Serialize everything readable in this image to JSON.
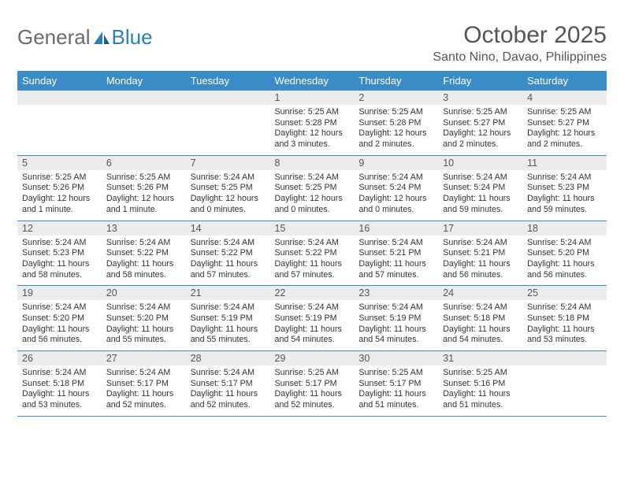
{
  "logo": {
    "word1": "General",
    "word2": "Blue"
  },
  "header": {
    "title": "October 2025",
    "location": "Santo Nino, Davao, Philippines"
  },
  "weekdays": [
    "Sunday",
    "Monday",
    "Tuesday",
    "Wednesday",
    "Thursday",
    "Friday",
    "Saturday"
  ],
  "colors": {
    "header_bg": "#3b8bc6",
    "daynum_bg": "#ececec",
    "row_border": "#3b8bc6"
  },
  "weeks": [
    [
      null,
      null,
      null,
      {
        "num": "1",
        "sunrise": "5:25 AM",
        "sunset": "5:28 PM",
        "daylight": "12 hours and 3 minutes."
      },
      {
        "num": "2",
        "sunrise": "5:25 AM",
        "sunset": "5:28 PM",
        "daylight": "12 hours and 2 minutes."
      },
      {
        "num": "3",
        "sunrise": "5:25 AM",
        "sunset": "5:27 PM",
        "daylight": "12 hours and 2 minutes."
      },
      {
        "num": "4",
        "sunrise": "5:25 AM",
        "sunset": "5:27 PM",
        "daylight": "12 hours and 2 minutes."
      }
    ],
    [
      {
        "num": "5",
        "sunrise": "5:25 AM",
        "sunset": "5:26 PM",
        "daylight": "12 hours and 1 minute."
      },
      {
        "num": "6",
        "sunrise": "5:25 AM",
        "sunset": "5:26 PM",
        "daylight": "12 hours and 1 minute."
      },
      {
        "num": "7",
        "sunrise": "5:24 AM",
        "sunset": "5:25 PM",
        "daylight": "12 hours and 0 minutes."
      },
      {
        "num": "8",
        "sunrise": "5:24 AM",
        "sunset": "5:25 PM",
        "daylight": "12 hours and 0 minutes."
      },
      {
        "num": "9",
        "sunrise": "5:24 AM",
        "sunset": "5:24 PM",
        "daylight": "12 hours and 0 minutes."
      },
      {
        "num": "10",
        "sunrise": "5:24 AM",
        "sunset": "5:24 PM",
        "daylight": "11 hours and 59 minutes."
      },
      {
        "num": "11",
        "sunrise": "5:24 AM",
        "sunset": "5:23 PM",
        "daylight": "11 hours and 59 minutes."
      }
    ],
    [
      {
        "num": "12",
        "sunrise": "5:24 AM",
        "sunset": "5:23 PM",
        "daylight": "11 hours and 58 minutes."
      },
      {
        "num": "13",
        "sunrise": "5:24 AM",
        "sunset": "5:22 PM",
        "daylight": "11 hours and 58 minutes."
      },
      {
        "num": "14",
        "sunrise": "5:24 AM",
        "sunset": "5:22 PM",
        "daylight": "11 hours and 57 minutes."
      },
      {
        "num": "15",
        "sunrise": "5:24 AM",
        "sunset": "5:22 PM",
        "daylight": "11 hours and 57 minutes."
      },
      {
        "num": "16",
        "sunrise": "5:24 AM",
        "sunset": "5:21 PM",
        "daylight": "11 hours and 57 minutes."
      },
      {
        "num": "17",
        "sunrise": "5:24 AM",
        "sunset": "5:21 PM",
        "daylight": "11 hours and 56 minutes."
      },
      {
        "num": "18",
        "sunrise": "5:24 AM",
        "sunset": "5:20 PM",
        "daylight": "11 hours and 56 minutes."
      }
    ],
    [
      {
        "num": "19",
        "sunrise": "5:24 AM",
        "sunset": "5:20 PM",
        "daylight": "11 hours and 56 minutes."
      },
      {
        "num": "20",
        "sunrise": "5:24 AM",
        "sunset": "5:20 PM",
        "daylight": "11 hours and 55 minutes."
      },
      {
        "num": "21",
        "sunrise": "5:24 AM",
        "sunset": "5:19 PM",
        "daylight": "11 hours and 55 minutes."
      },
      {
        "num": "22",
        "sunrise": "5:24 AM",
        "sunset": "5:19 PM",
        "daylight": "11 hours and 54 minutes."
      },
      {
        "num": "23",
        "sunrise": "5:24 AM",
        "sunset": "5:19 PM",
        "daylight": "11 hours and 54 minutes."
      },
      {
        "num": "24",
        "sunrise": "5:24 AM",
        "sunset": "5:18 PM",
        "daylight": "11 hours and 54 minutes."
      },
      {
        "num": "25",
        "sunrise": "5:24 AM",
        "sunset": "5:18 PM",
        "daylight": "11 hours and 53 minutes."
      }
    ],
    [
      {
        "num": "26",
        "sunrise": "5:24 AM",
        "sunset": "5:18 PM",
        "daylight": "11 hours and 53 minutes."
      },
      {
        "num": "27",
        "sunrise": "5:24 AM",
        "sunset": "5:17 PM",
        "daylight": "11 hours and 52 minutes."
      },
      {
        "num": "28",
        "sunrise": "5:24 AM",
        "sunset": "5:17 PM",
        "daylight": "11 hours and 52 minutes."
      },
      {
        "num": "29",
        "sunrise": "5:25 AM",
        "sunset": "5:17 PM",
        "daylight": "11 hours and 52 minutes."
      },
      {
        "num": "30",
        "sunrise": "5:25 AM",
        "sunset": "5:17 PM",
        "daylight": "11 hours and 51 minutes."
      },
      {
        "num": "31",
        "sunrise": "5:25 AM",
        "sunset": "5:16 PM",
        "daylight": "11 hours and 51 minutes."
      },
      null
    ]
  ],
  "labels": {
    "sunrise": "Sunrise: ",
    "sunset": "Sunset: ",
    "daylight": "Daylight: "
  }
}
